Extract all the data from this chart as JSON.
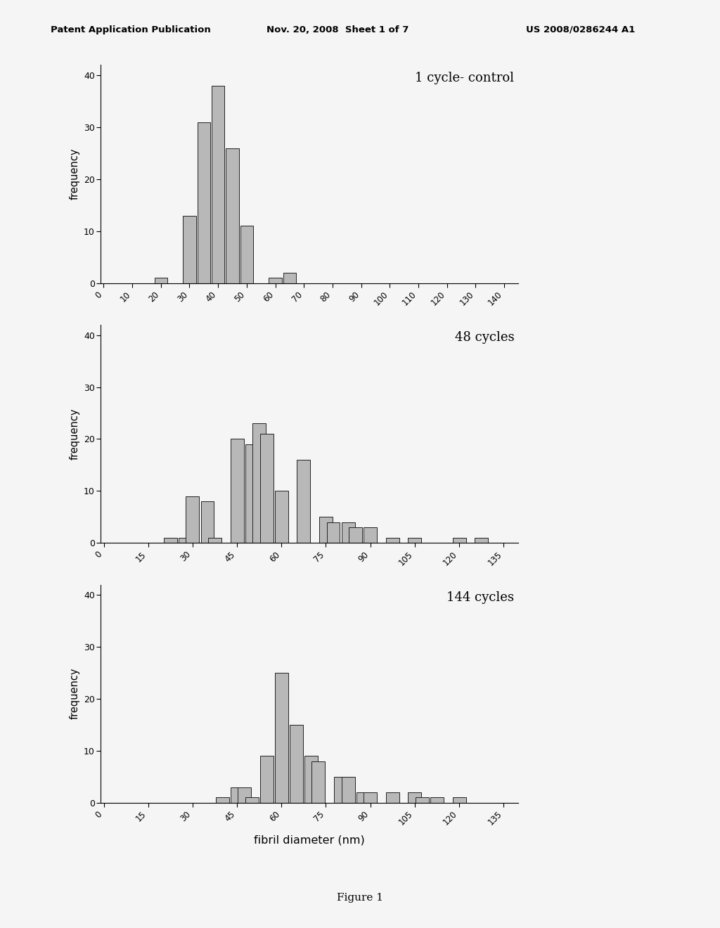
{
  "chart1": {
    "title": "1 cycle- control",
    "bar_centers": [
      20,
      25,
      30,
      35,
      40,
      45,
      50,
      55,
      60,
      65
    ],
    "bar_heights": [
      1,
      0,
      13,
      31,
      38,
      26,
      11,
      0,
      1,
      2
    ],
    "bar_width": 4.5,
    "xlim": [
      -1,
      145
    ],
    "ylim": [
      0,
      42
    ],
    "xticks": [
      0,
      10,
      20,
      30,
      40,
      50,
      60,
      70,
      80,
      90,
      100,
      110,
      120,
      130,
      140
    ],
    "yticks": [
      0,
      10,
      20,
      30,
      40
    ]
  },
  "chart2": {
    "title": "48 cycles",
    "bar_centers": [
      22.5,
      27.5,
      30,
      35,
      37.5,
      45,
      50,
      52.5,
      55,
      60,
      67.5,
      75,
      77.5,
      82.5,
      85,
      90,
      97.5,
      105,
      120,
      127.5
    ],
    "bar_heights": [
      1,
      1,
      9,
      8,
      1,
      20,
      19,
      23,
      21,
      10,
      16,
      5,
      4,
      4,
      3,
      3,
      1,
      1,
      1,
      1
    ],
    "bar_width": 4.5,
    "xlim": [
      -1,
      140
    ],
    "ylim": [
      0,
      42
    ],
    "xticks": [
      0,
      15,
      30,
      45,
      60,
      75,
      90,
      105,
      120,
      135
    ],
    "yticks": [
      0,
      10,
      20,
      30,
      40
    ]
  },
  "chart3": {
    "title": "144 cycles",
    "bar_centers": [
      40,
      45,
      47.5,
      50,
      55,
      60,
      65,
      70,
      72.5,
      75,
      80,
      82.5,
      87.5,
      90,
      97.5,
      105,
      107.5,
      112.5,
      120,
      125
    ],
    "bar_heights": [
      1,
      3,
      3,
      1,
      9,
      25,
      15,
      9,
      8,
      0,
      5,
      5,
      2,
      2,
      2,
      2,
      1,
      1,
      1,
      0
    ],
    "bar_width": 4.5,
    "xlim": [
      -1,
      140
    ],
    "ylim": [
      0,
      42
    ],
    "xticks": [
      0,
      15,
      30,
      45,
      60,
      75,
      90,
      105,
      120,
      135
    ],
    "yticks": [
      0,
      10,
      20,
      30,
      40
    ]
  },
  "xlabel": "fibril diameter (nm)",
  "ylabel": "frequency",
  "figure_label": "Figure 1",
  "header_left": "Patent Application Publication",
  "header_center": "Nov. 20, 2008  Sheet 1 of 7",
  "header_right": "US 2008/0286244 A1",
  "bar_color": "#b8b8b8",
  "bar_edgecolor": "#222222",
  "bg_color": "#f5f5f5"
}
